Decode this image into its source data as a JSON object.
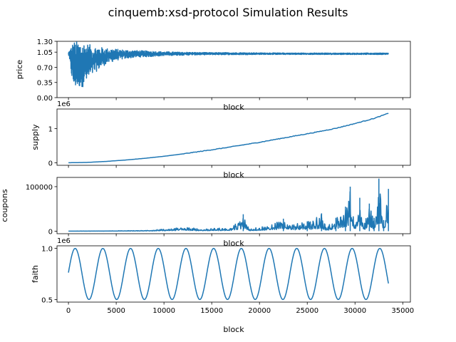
{
  "figure": {
    "title": "cinquemb:xsd-protocol Simulation Results"
  },
  "chart_data": [
    {
      "type": "line",
      "xlabel": "block",
      "ylabel": "price",
      "xlim": [
        0,
        33500
      ],
      "ylim": [
        0.0,
        1.3
      ],
      "y_ticks": [
        "0.00",
        "0.35",
        "0.70",
        "1.05",
        "1.30"
      ],
      "x_ticks_labeled": false,
      "multiplier": "",
      "color": "#1f77b4",
      "series": [
        {
          "x": [
            0,
            500,
            1000,
            1500,
            2000,
            2500,
            3000,
            4000,
            5000,
            6000,
            7000,
            8000,
            9000,
            10000,
            12000,
            15000,
            18000,
            20000,
            25000,
            30000,
            33500
          ],
          "y_min": [
            1.0,
            0.2,
            0.22,
            0.25,
            0.35,
            0.5,
            0.62,
            0.78,
            0.86,
            0.9,
            0.93,
            0.94,
            0.95,
            0.97,
            0.98,
            0.99,
            0.99,
            0.995,
            0.995,
            0.995,
            0.995
          ],
          "y_max": [
            1.05,
            1.3,
            1.3,
            1.3,
            1.25,
            1.2,
            1.18,
            1.14,
            1.12,
            1.1,
            1.09,
            1.08,
            1.07,
            1.06,
            1.05,
            1.04,
            1.04,
            1.035,
            1.03,
            1.03,
            1.03
          ]
        }
      ]
    },
    {
      "type": "line",
      "xlabel": "block",
      "ylabel": "supply",
      "xlim": [
        0,
        33500
      ],
      "ylim": [
        0,
        1500000
      ],
      "y_ticks": [
        "0",
        "1"
      ],
      "x_ticks_labeled": false,
      "multiplier": "1e6",
      "color": "#1f77b4",
      "series": [
        {
          "x": [
            0,
            2000,
            4000,
            6000,
            8000,
            10000,
            12000,
            14000,
            16000,
            18000,
            20000,
            22000,
            24000,
            26000,
            28000,
            30000,
            32000,
            33500
          ],
          "y": [
            0,
            10000,
            40000,
            80000,
            130000,
            190000,
            260000,
            340000,
            420000,
            510000,
            600000,
            700000,
            800000,
            900000,
            1010000,
            1150000,
            1300000,
            1450000
          ]
        }
      ]
    },
    {
      "type": "line",
      "xlabel": "block",
      "ylabel": "coupons",
      "xlim": [
        0,
        33500
      ],
      "ylim": [
        0,
        115000
      ],
      "y_ticks": [
        "0",
        "100000"
      ],
      "x_ticks_labeled": false,
      "multiplier": "",
      "color": "#1f77b4",
      "series": [
        {
          "x": [
            0,
            4000,
            8000,
            11000,
            11500,
            14000,
            17000,
            18300,
            19000,
            21000,
            22500,
            24000,
            25000,
            26500,
            27000,
            28000,
            29000,
            29500,
            30000,
            30500,
            31000,
            31500,
            32000,
            32500,
            33000,
            33500
          ],
          "y": [
            0,
            500,
            2000,
            6000,
            11000,
            5000,
            9000,
            38000,
            6000,
            14000,
            28000,
            18000,
            22000,
            40000,
            10000,
            30000,
            55000,
            100000,
            15000,
            75000,
            20000,
            62000,
            30000,
            118000,
            25000,
            95000
          ]
        }
      ]
    },
    {
      "type": "line",
      "xlabel": "block",
      "ylabel": "faith",
      "xlim": [
        0,
        33500
      ],
      "ylim": [
        500000,
        1000000
      ],
      "y_ticks": [
        "0.5",
        "1.0"
      ],
      "x_ticks": [
        "0",
        "5000",
        "10000",
        "15000",
        "20000",
        "25000",
        "30000",
        "35000"
      ],
      "x_ticks_labeled": true,
      "multiplier": "1e6",
      "color": "#1f77b4",
      "series": [
        {
          "name": "",
          "x": [
            0,
            33500
          ],
          "y_min": 500000,
          "y_max": 1000000,
          "period": 2900,
          "phase_block": 700
        }
      ]
    }
  ]
}
